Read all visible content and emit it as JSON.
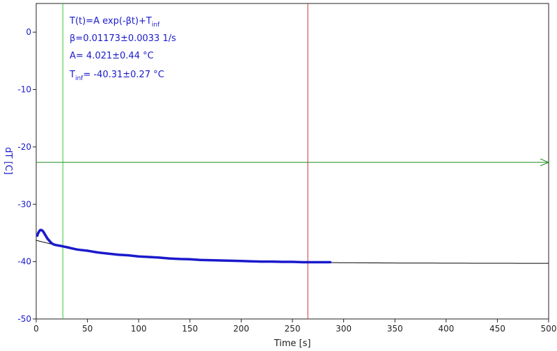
{
  "chart_data": {
    "type": "scatter",
    "xlabel": "Time [s]",
    "ylabel": "dT [C]",
    "xlim": [
      0,
      500
    ],
    "ylim": [
      -50,
      5
    ],
    "xticks": [
      0,
      50,
      100,
      150,
      200,
      250,
      300,
      350,
      400,
      450,
      500
    ],
    "yticks": [
      0,
      -10,
      -20,
      -30,
      -40,
      -50
    ],
    "grid": false,
    "colors": {
      "data": "#1a1acc",
      "fit": "#000000",
      "start_marker": "#33cc33",
      "end_marker": "#cc3333",
      "threshold": "#228b22"
    },
    "annotation": {
      "line1": {
        "text": "T(t)=A exp(-βt)+T",
        "sub": "inf"
      },
      "line2": "β=0.01173±0.0033 1/s",
      "line3": "A= 4.021±0.44 °C",
      "line4": {
        "pre": "T",
        "sub": "inf",
        "text": "= -40.31±0.27 °C"
      }
    },
    "fit": {
      "A": 4.021,
      "beta": 0.01173,
      "T_inf": -40.31,
      "x_range": [
        0,
        500
      ]
    },
    "vertical_markers": [
      {
        "x": 26,
        "role": "fit-start"
      },
      {
        "x": 265,
        "role": "fit-end"
      }
    ],
    "horizontal_marker": {
      "y": -22.7,
      "arrow": "right"
    },
    "series": [
      {
        "x": [
          1,
          2,
          3,
          4,
          5,
          6,
          7,
          8,
          9,
          10,
          11,
          12,
          13,
          14,
          15,
          17,
          19,
          22,
          25,
          30,
          35,
          40,
          45,
          50,
          60,
          70,
          80,
          90,
          100,
          110,
          120,
          130,
          140,
          150,
          160,
          170,
          180,
          190,
          200,
          210,
          220,
          230,
          240,
          250,
          260,
          270,
          280,
          287
        ],
        "y": [
          -35.5,
          -35.0,
          -34.7,
          -34.5,
          -34.5,
          -34.6,
          -34.8,
          -35.1,
          -35.4,
          -35.7,
          -36.0,
          -36.2,
          -36.4,
          -36.6,
          -36.8,
          -37.0,
          -37.1,
          -37.2,
          -37.3,
          -37.5,
          -37.7,
          -37.9,
          -38.0,
          -38.1,
          -38.4,
          -38.6,
          -38.8,
          -38.9,
          -39.1,
          -39.2,
          -39.3,
          -39.45,
          -39.55,
          -39.6,
          -39.7,
          -39.75,
          -39.8,
          -39.85,
          -39.9,
          -39.95,
          -40.0,
          -40.0,
          -40.05,
          -40.05,
          -40.1,
          -40.1,
          -40.1,
          -40.1
        ]
      }
    ]
  }
}
